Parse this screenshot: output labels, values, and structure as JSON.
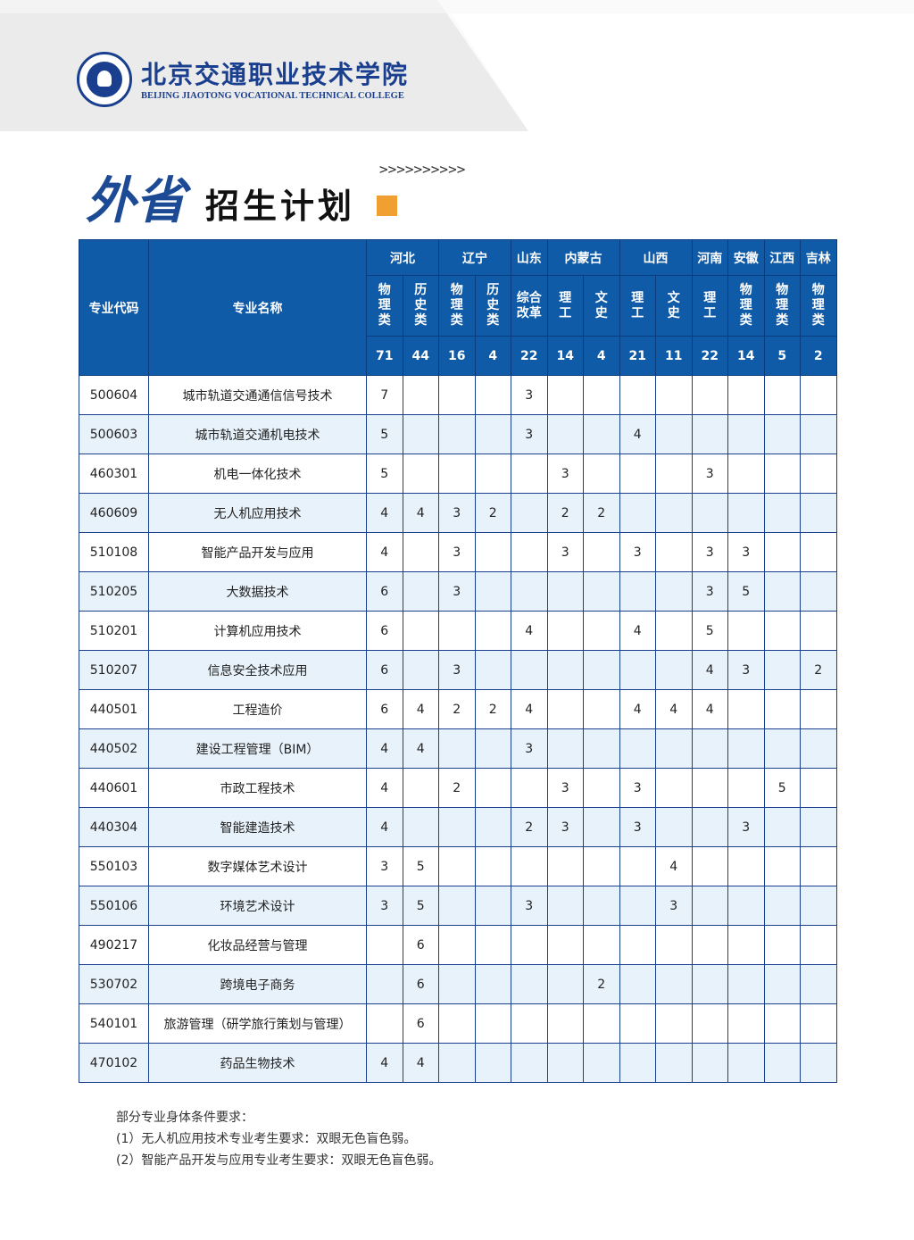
{
  "header": {
    "school_cn": "北京交通职业技术学院",
    "school_en": "BEIJING JIAOTONG VOCATIONAL TECHNICAL COLLEGE",
    "title_main": "外省",
    "title_sub": "招生计划",
    "arrows": ">>>>>>>>>>",
    "accent_color": "#f0a030",
    "brand_color": "#0f5ba8"
  },
  "table": {
    "col_code": "专业代码",
    "col_name": "专业名称",
    "provinces": [
      {
        "name": "河北",
        "span": 2
      },
      {
        "name": "辽宁",
        "span": 2
      },
      {
        "name": "山东",
        "span": 1
      },
      {
        "name": "内蒙古",
        "span": 2
      },
      {
        "name": "山西",
        "span": 2
      },
      {
        "name": "河南",
        "span": 1
      },
      {
        "name": "安徽",
        "span": 1
      },
      {
        "name": "江西",
        "span": 1
      },
      {
        "name": "吉林",
        "span": 1
      }
    ],
    "subjects": [
      "物理类",
      "历史类",
      "物理类",
      "历史类",
      "综合改革",
      "理工",
      "文史",
      "理工",
      "文史",
      "理工",
      "物理类",
      "物理类",
      "物理类"
    ],
    "totals": [
      "71",
      "44",
      "16",
      "4",
      "22",
      "14",
      "4",
      "21",
      "11",
      "22",
      "14",
      "5",
      "2"
    ],
    "rows": [
      {
        "code": "500604",
        "name": "城市轨道交通通信信号技术",
        "v": [
          "7",
          "",
          "",
          "",
          "3",
          "",
          "",
          "",
          "",
          "",
          "",
          "",
          ""
        ]
      },
      {
        "code": "500603",
        "name": "城市轨道交通机电技术",
        "v": [
          "5",
          "",
          "",
          "",
          "3",
          "",
          "",
          "4",
          "",
          "",
          "",
          "",
          ""
        ]
      },
      {
        "code": "460301",
        "name": "机电一体化技术",
        "v": [
          "5",
          "",
          "",
          "",
          "",
          "3",
          "",
          "",
          "",
          "3",
          "",
          "",
          ""
        ]
      },
      {
        "code": "460609",
        "name": "无人机应用技术",
        "v": [
          "4",
          "4",
          "3",
          "2",
          "",
          "2",
          "2",
          "",
          "",
          "",
          "",
          "",
          ""
        ]
      },
      {
        "code": "510108",
        "name": "智能产品开发与应用",
        "v": [
          "4",
          "",
          "3",
          "",
          "",
          "3",
          "",
          "3",
          "",
          "3",
          "3",
          "",
          ""
        ]
      },
      {
        "code": "510205",
        "name": "大数据技术",
        "v": [
          "6",
          "",
          "3",
          "",
          "",
          "",
          "",
          "",
          "",
          "3",
          "5",
          "",
          ""
        ]
      },
      {
        "code": "510201",
        "name": "计算机应用技术",
        "v": [
          "6",
          "",
          "",
          "",
          "4",
          "",
          "",
          "4",
          "",
          "5",
          "",
          "",
          ""
        ]
      },
      {
        "code": "510207",
        "name": "信息安全技术应用",
        "v": [
          "6",
          "",
          "3",
          "",
          "",
          "",
          "",
          "",
          "",
          "4",
          "3",
          "",
          "2"
        ]
      },
      {
        "code": "440501",
        "name": "工程造价",
        "v": [
          "6",
          "4",
          "2",
          "2",
          "4",
          "",
          "",
          "4",
          "4",
          "4",
          "",
          "",
          ""
        ]
      },
      {
        "code": "440502",
        "name": "建设工程管理（BIM）",
        "v": [
          "4",
          "4",
          "",
          "",
          "3",
          "",
          "",
          "",
          "",
          "",
          "",
          "",
          ""
        ]
      },
      {
        "code": "440601",
        "name": "市政工程技术",
        "v": [
          "4",
          "",
          "2",
          "",
          "",
          "3",
          "",
          "3",
          "",
          "",
          "",
          "5",
          ""
        ]
      },
      {
        "code": "440304",
        "name": "智能建造技术",
        "v": [
          "4",
          "",
          "",
          "",
          "2",
          "3",
          "",
          "3",
          "",
          "",
          "3",
          "",
          ""
        ]
      },
      {
        "code": "550103",
        "name": "数字媒体艺术设计",
        "v": [
          "3",
          "5",
          "",
          "",
          "",
          "",
          "",
          "",
          "4",
          "",
          "",
          "",
          ""
        ]
      },
      {
        "code": "550106",
        "name": "环境艺术设计",
        "v": [
          "3",
          "5",
          "",
          "",
          "3",
          "",
          "",
          "",
          "3",
          "",
          "",
          "",
          ""
        ]
      },
      {
        "code": "490217",
        "name": "化妆品经营与管理",
        "v": [
          "",
          "6",
          "",
          "",
          "",
          "",
          "",
          "",
          "",
          "",
          "",
          "",
          ""
        ]
      },
      {
        "code": "530702",
        "name": "跨境电子商务",
        "v": [
          "",
          "6",
          "",
          "",
          "",
          "",
          "2",
          "",
          "",
          "",
          "",
          "",
          ""
        ]
      },
      {
        "code": "540101",
        "name": "旅游管理（研学旅行策划与管理）",
        "v": [
          "",
          "6",
          "",
          "",
          "",
          "",
          "",
          "",
          "",
          "",
          "",
          "",
          ""
        ]
      },
      {
        "code": "470102",
        "name": "药品生物技术",
        "v": [
          "4",
          "4",
          "",
          "",
          "",
          "",
          "",
          "",
          "",
          "",
          "",
          "",
          ""
        ]
      }
    ]
  },
  "notes": [
    "部分专业身体条件要求：",
    "(1）无人机应用技术专业考生要求：双眼无色盲色弱。",
    "(2）智能产品开发与应用专业考生要求：双眼无色盲色弱。"
  ]
}
